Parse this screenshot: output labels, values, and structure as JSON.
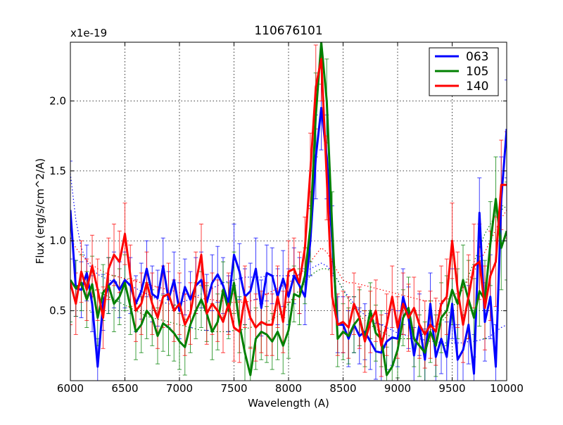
{
  "chart_data": {
    "type": "line",
    "title": "110676101",
    "xlabel": "Wavelength (A)",
    "ylabel": "Flux (erg/s/cm^2/A)",
    "offset_text": "x1e-19",
    "xlim": [
      6000,
      10000
    ],
    "ylim": [
      0.0,
      2.42
    ],
    "grid": true,
    "legend_position": "top-right",
    "x_ticks": [
      6000,
      6500,
      7000,
      7500,
      8000,
      8500,
      9000,
      9500,
      10000
    ],
    "x_tick_labels": [
      "6000",
      "6500",
      "7000",
      "7500",
      "8000",
      "8500",
      "9000",
      "9500",
      "10000"
    ],
    "y_ticks": [
      0.5,
      1.0,
      1.5,
      2.0
    ],
    "y_tick_labels": [
      "0.5",
      "1.0",
      "1.5",
      "2.0"
    ],
    "x": [
      6000,
      6050,
      6100,
      6150,
      6200,
      6250,
      6300,
      6350,
      6400,
      6450,
      6500,
      6550,
      6600,
      6650,
      6700,
      6750,
      6800,
      6850,
      6900,
      6950,
      7000,
      7050,
      7100,
      7150,
      7200,
      7250,
      7300,
      7350,
      7400,
      7450,
      7500,
      7550,
      7600,
      7650,
      7700,
      7750,
      7800,
      7850,
      7900,
      7950,
      8000,
      8050,
      8100,
      8150,
      8200,
      8250,
      8300,
      8350,
      8400,
      8450,
      8500,
      8550,
      8600,
      8650,
      8700,
      8750,
      8800,
      8850,
      8900,
      8950,
      9000,
      9050,
      9100,
      9150,
      9200,
      9250,
      9300,
      9350,
      9400,
      9450,
      9500,
      9550,
      9600,
      9650,
      9700,
      9750,
      9800,
      9850,
      9900,
      9950,
      10000
    ],
    "series": [
      {
        "name": "063",
        "color": "#0000ff",
        "values": [
          1.22,
          0.66,
          0.65,
          0.77,
          0.55,
          0.1,
          0.56,
          0.68,
          0.72,
          0.65,
          0.72,
          0.68,
          0.55,
          0.64,
          0.8,
          0.62,
          0.59,
          0.82,
          0.58,
          0.72,
          0.5,
          0.67,
          0.58,
          0.68,
          0.72,
          0.56,
          0.7,
          0.76,
          0.68,
          0.55,
          0.9,
          0.78,
          0.6,
          0.64,
          0.8,
          0.52,
          0.77,
          0.75,
          0.6,
          0.73,
          0.6,
          0.75,
          0.68,
          0.6,
          1.0,
          1.6,
          1.95,
          1.6,
          1.0,
          0.4,
          0.4,
          0.3,
          0.4,
          0.32,
          0.35,
          0.28,
          0.21,
          0.2,
          0.28,
          0.31,
          0.3,
          0.6,
          0.45,
          0.18,
          0.4,
          0.15,
          0.55,
          0.17,
          0.3,
          0.17,
          0.55,
          0.15,
          0.22,
          0.4,
          0.05,
          1.2,
          0.42,
          0.6,
          0.1,
          1.3,
          1.8
        ]
      },
      {
        "name": "105",
        "color": "#008000",
        "values": [
          0.72,
          0.66,
          0.7,
          0.58,
          0.69,
          0.45,
          0.63,
          0.68,
          0.55,
          0.6,
          0.7,
          0.53,
          0.35,
          0.4,
          0.5,
          0.45,
          0.32,
          0.41,
          0.38,
          0.34,
          0.28,
          0.24,
          0.4,
          0.5,
          0.58,
          0.48,
          0.35,
          0.42,
          0.65,
          0.5,
          0.7,
          0.4,
          0.2,
          0.04,
          0.3,
          0.35,
          0.33,
          0.28,
          0.35,
          0.25,
          0.36,
          0.62,
          0.6,
          0.75,
          1.1,
          1.9,
          2.42,
          2.0,
          1.1,
          0.3,
          0.35,
          0.32,
          0.4,
          0.45,
          0.3,
          0.5,
          0.34,
          0.3,
          0.04,
          0.1,
          0.22,
          0.45,
          0.52,
          0.3,
          0.25,
          0.2,
          0.35,
          0.25,
          0.45,
          0.5,
          0.65,
          0.55,
          0.72,
          0.58,
          0.45,
          0.64,
          0.58,
          0.98,
          1.3,
          0.95,
          1.07
        ]
      },
      {
        "name": "140",
        "color": "#ff0000",
        "values": [
          0.7,
          0.55,
          0.78,
          0.65,
          0.82,
          0.65,
          0.45,
          0.8,
          0.9,
          0.85,
          1.05,
          0.75,
          0.5,
          0.55,
          0.7,
          0.55,
          0.45,
          0.6,
          0.62,
          0.5,
          0.55,
          0.4,
          0.48,
          0.7,
          0.9,
          0.48,
          0.55,
          0.5,
          0.42,
          0.55,
          0.38,
          0.35,
          0.6,
          0.45,
          0.38,
          0.42,
          0.4,
          0.4,
          0.6,
          0.42,
          0.78,
          0.8,
          0.7,
          0.95,
          1.5,
          2.1,
          2.3,
          1.45,
          0.6,
          0.4,
          0.42,
          0.38,
          0.55,
          0.45,
          0.28,
          0.42,
          0.5,
          0.25,
          0.4,
          0.6,
          0.38,
          0.55,
          0.45,
          0.52,
          0.4,
          0.33,
          0.4,
          0.35,
          0.55,
          0.6,
          1.0,
          0.65,
          0.4,
          0.6,
          0.82,
          0.85,
          0.52,
          0.75,
          0.85,
          1.4,
          1.4
        ]
      }
    ],
    "model_series": [
      {
        "name": "063-model",
        "color": "#0000ff",
        "style": "dotted",
        "values": [
          1.48,
          1.15,
          0.95,
          0.85,
          0.8,
          0.76,
          0.74,
          0.72,
          0.71,
          0.7,
          0.69,
          0.68,
          0.66,
          0.64,
          0.62,
          0.6,
          0.58,
          0.56,
          0.55,
          0.54,
          0.55,
          0.57,
          0.58,
          0.6,
          0.62,
          0.64,
          0.66,
          0.68,
          0.7,
          0.71,
          0.72,
          0.73,
          0.74,
          0.74,
          0.74,
          0.74,
          0.75,
          0.75,
          0.75,
          0.75,
          0.75,
          0.75,
          0.76,
          0.78,
          0.8,
          0.82,
          0.84,
          0.82,
          0.78,
          0.72,
          0.65,
          0.6,
          0.55,
          0.5,
          0.47,
          0.44,
          0.42,
          0.4,
          0.38,
          0.36,
          0.34,
          0.33,
          0.32,
          0.31,
          0.3,
          0.29,
          0.28,
          0.28,
          0.27,
          0.27,
          0.27,
          0.27,
          0.27,
          0.28,
          0.28,
          0.29,
          0.3,
          0.32,
          0.35,
          0.38,
          0.4
        ]
      },
      {
        "name": "105-model",
        "color": "#008000",
        "style": "dotted",
        "values": [
          0.68,
          0.68,
          0.68,
          0.67,
          0.66,
          0.64,
          0.62,
          0.6,
          0.58,
          0.56,
          0.54,
          0.52,
          0.5,
          0.48,
          0.46,
          0.45,
          0.44,
          0.43,
          0.42,
          0.41,
          0.4,
          0.39,
          0.38,
          0.37,
          0.36,
          0.36,
          0.35,
          0.35,
          0.35,
          0.35,
          0.36,
          0.36,
          0.37,
          0.38,
          0.39,
          0.4,
          0.42,
          0.44,
          0.46,
          0.5,
          0.55,
          0.6,
          0.65,
          0.7,
          0.75,
          0.78,
          0.8,
          0.8,
          0.78,
          0.72,
          0.65,
          0.58,
          0.52,
          0.47,
          0.43,
          0.4,
          0.37,
          0.35,
          0.33,
          0.31,
          0.3,
          0.3,
          0.3,
          0.31,
          0.32,
          0.34,
          0.36,
          0.39,
          0.42,
          0.46,
          0.52,
          0.58,
          0.66,
          0.75,
          0.85,
          0.95,
          1.05,
          1.12,
          1.18,
          1.22,
          1.25
        ]
      },
      {
        "name": "140-model",
        "color": "#ff0000",
        "style": "dotted",
        "values": [
          1.02,
          0.95,
          0.9,
          0.86,
          0.83,
          0.8,
          0.78,
          0.76,
          0.75,
          0.74,
          0.73,
          0.72,
          0.71,
          0.7,
          0.69,
          0.68,
          0.67,
          0.66,
          0.65,
          0.64,
          0.63,
          0.62,
          0.61,
          0.6,
          0.59,
          0.58,
          0.58,
          0.57,
          0.57,
          0.56,
          0.56,
          0.56,
          0.56,
          0.57,
          0.58,
          0.6,
          0.62,
          0.64,
          0.66,
          0.68,
          0.7,
          0.73,
          0.76,
          0.8,
          0.85,
          0.9,
          0.95,
          0.92,
          0.85,
          0.78,
          0.72,
          0.7,
          0.7,
          0.69,
          0.68,
          0.67,
          0.66,
          0.65,
          0.64,
          0.63,
          0.62,
          0.61,
          0.6,
          0.59,
          0.58,
          0.57,
          0.57,
          0.57,
          0.57,
          0.58,
          0.6,
          0.63,
          0.67,
          0.72,
          0.78,
          0.85,
          0.92,
          1.0,
          1.08,
          1.16,
          1.22
        ]
      }
    ],
    "error_bars": {
      "063": [
        0.35,
        0.2,
        0.2,
        0.2,
        0.2,
        0.2,
        0.2,
        0.2,
        0.2,
        0.2,
        0.2,
        0.2,
        0.2,
        0.2,
        0.2,
        0.2,
        0.2,
        0.2,
        0.2,
        0.2,
        0.2,
        0.2,
        0.2,
        0.2,
        0.2,
        0.2,
        0.2,
        0.2,
        0.2,
        0.2,
        0.22,
        0.2,
        0.2,
        0.2,
        0.22,
        0.2,
        0.2,
        0.2,
        0.2,
        0.2,
        0.2,
        0.2,
        0.2,
        0.2,
        0.25,
        0.3,
        0.3,
        0.3,
        0.25,
        0.2,
        0.2,
        0.2,
        0.2,
        0.2,
        0.2,
        0.2,
        0.2,
        0.2,
        0.2,
        0.2,
        0.2,
        0.2,
        0.22,
        0.2,
        0.22,
        0.22,
        0.22,
        0.22,
        0.25,
        0.25,
        0.25,
        0.25,
        0.25,
        0.28,
        0.28,
        0.25,
        0.28,
        0.3,
        0.3,
        0.3,
        0.35
      ],
      "105": [
        0.3,
        0.2,
        0.2,
        0.2,
        0.2,
        0.2,
        0.2,
        0.2,
        0.2,
        0.2,
        0.2,
        0.2,
        0.2,
        0.2,
        0.2,
        0.2,
        0.2,
        0.2,
        0.2,
        0.2,
        0.2,
        0.2,
        0.2,
        0.2,
        0.2,
        0.2,
        0.2,
        0.2,
        0.2,
        0.2,
        0.22,
        0.2,
        0.2,
        0.2,
        0.22,
        0.2,
        0.2,
        0.2,
        0.2,
        0.2,
        0.2,
        0.2,
        0.2,
        0.2,
        0.25,
        0.3,
        0.3,
        0.3,
        0.25,
        0.2,
        0.2,
        0.2,
        0.2,
        0.2,
        0.2,
        0.2,
        0.2,
        0.2,
        0.2,
        0.2,
        0.2,
        0.2,
        0.22,
        0.2,
        0.22,
        0.22,
        0.22,
        0.22,
        0.25,
        0.25,
        0.25,
        0.25,
        0.25,
        0.28,
        0.28,
        0.25,
        0.28,
        0.3,
        0.3,
        0.3,
        0.35
      ],
      "140": [
        0.3,
        0.22,
        0.22,
        0.22,
        0.22,
        0.22,
        0.22,
        0.22,
        0.22,
        0.22,
        0.22,
        0.22,
        0.22,
        0.22,
        0.22,
        0.22,
        0.22,
        0.22,
        0.22,
        0.22,
        0.22,
        0.22,
        0.22,
        0.22,
        0.22,
        0.22,
        0.22,
        0.22,
        0.22,
        0.22,
        0.24,
        0.22,
        0.22,
        0.22,
        0.24,
        0.22,
        0.22,
        0.22,
        0.22,
        0.22,
        0.22,
        0.22,
        0.22,
        0.22,
        0.27,
        0.3,
        0.3,
        0.3,
        0.27,
        0.22,
        0.22,
        0.22,
        0.22,
        0.22,
        0.22,
        0.22,
        0.22,
        0.22,
        0.22,
        0.22,
        0.22,
        0.22,
        0.24,
        0.22,
        0.24,
        0.24,
        0.24,
        0.24,
        0.27,
        0.27,
        0.27,
        0.27,
        0.27,
        0.3,
        0.3,
        0.27,
        0.3,
        0.32,
        0.32,
        0.32,
        0.38
      ]
    }
  }
}
